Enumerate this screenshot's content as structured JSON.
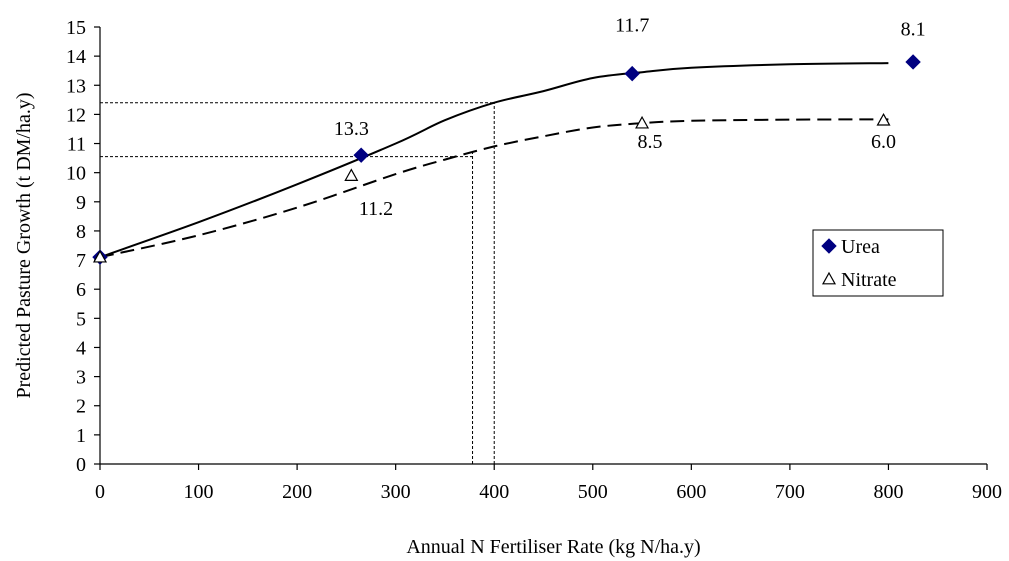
{
  "chart_data": {
    "type": "scatter",
    "xlabel": "Annual N Fertiliser Rate (kg N/ha.y)",
    "ylabel": "Predicted Pasture Growth (t DM/ha.y)",
    "xlim": [
      0,
      900
    ],
    "ylim": [
      0,
      15
    ],
    "x_ticks": [
      "0",
      "100",
      "200",
      "300",
      "400",
      "500",
      "600",
      "700",
      "800",
      "900"
    ],
    "y_ticks": [
      "0",
      "1",
      "2",
      "3",
      "4",
      "5",
      "6",
      "7",
      "8",
      "9",
      "10",
      "11",
      "12",
      "13",
      "14",
      "15"
    ],
    "grid": false,
    "legend_position": "right",
    "series": [
      {
        "name": "Urea",
        "marker": "diamond",
        "color": "#000080",
        "points": [
          {
            "x": 0,
            "y": 7.1
          },
          {
            "x": 265,
            "y": 10.6
          },
          {
            "x": 540,
            "y": 13.4
          },
          {
            "x": 825,
            "y": 13.8
          }
        ]
      },
      {
        "name": "Nitrate",
        "marker": "triangle-open",
        "color": "#000000",
        "points": [
          {
            "x": 0,
            "y": 7.1
          },
          {
            "x": 255,
            "y": 9.9
          },
          {
            "x": 550,
            "y": 11.7
          },
          {
            "x": 795,
            "y": 11.8
          }
        ]
      }
    ],
    "curves": [
      {
        "style": "solid",
        "points": [
          [
            0,
            7.1
          ],
          [
            100,
            8.3
          ],
          [
            200,
            9.6
          ],
          [
            300,
            11.0
          ],
          [
            350,
            11.8
          ],
          [
            400,
            12.4
          ],
          [
            450,
            12.8
          ],
          [
            500,
            13.25
          ],
          [
            550,
            13.45
          ],
          [
            600,
            13.6
          ],
          [
            700,
            13.72
          ],
          [
            800,
            13.76
          ]
        ]
      },
      {
        "style": "dashed",
        "points": [
          [
            0,
            7.1
          ],
          [
            100,
            7.85
          ],
          [
            200,
            8.8
          ],
          [
            300,
            9.95
          ],
          [
            350,
            10.45
          ],
          [
            400,
            10.9
          ],
          [
            450,
            11.25
          ],
          [
            500,
            11.55
          ],
          [
            550,
            11.7
          ],
          [
            600,
            11.78
          ],
          [
            700,
            11.82
          ],
          [
            800,
            11.83
          ]
        ]
      }
    ],
    "reference_lines": [
      {
        "style": "dotted",
        "from": [
          0,
          12.4
        ],
        "to": [
          400,
          12.4
        ]
      },
      {
        "style": "dotted",
        "from": [
          400,
          0
        ],
        "to": [
          400,
          12.4
        ]
      },
      {
        "style": "dotted",
        "from": [
          0,
          10.55
        ],
        "to": [
          378,
          10.55
        ]
      },
      {
        "style": "dotted",
        "from": [
          378,
          0
        ],
        "to": [
          378,
          10.7
        ]
      }
    ],
    "annotations": [
      {
        "text": "11.7",
        "x": 540,
        "y": 14.85
      },
      {
        "text": "8.1",
        "x": 825,
        "y": 14.7
      },
      {
        "text": "13.3",
        "x": 255,
        "y": 11.3
      },
      {
        "text": "11.2",
        "x": 280,
        "y": 8.55
      },
      {
        "text": "8.5",
        "x": 558,
        "y": 10.85
      },
      {
        "text": "6.0",
        "x": 795,
        "y": 10.85
      }
    ]
  }
}
